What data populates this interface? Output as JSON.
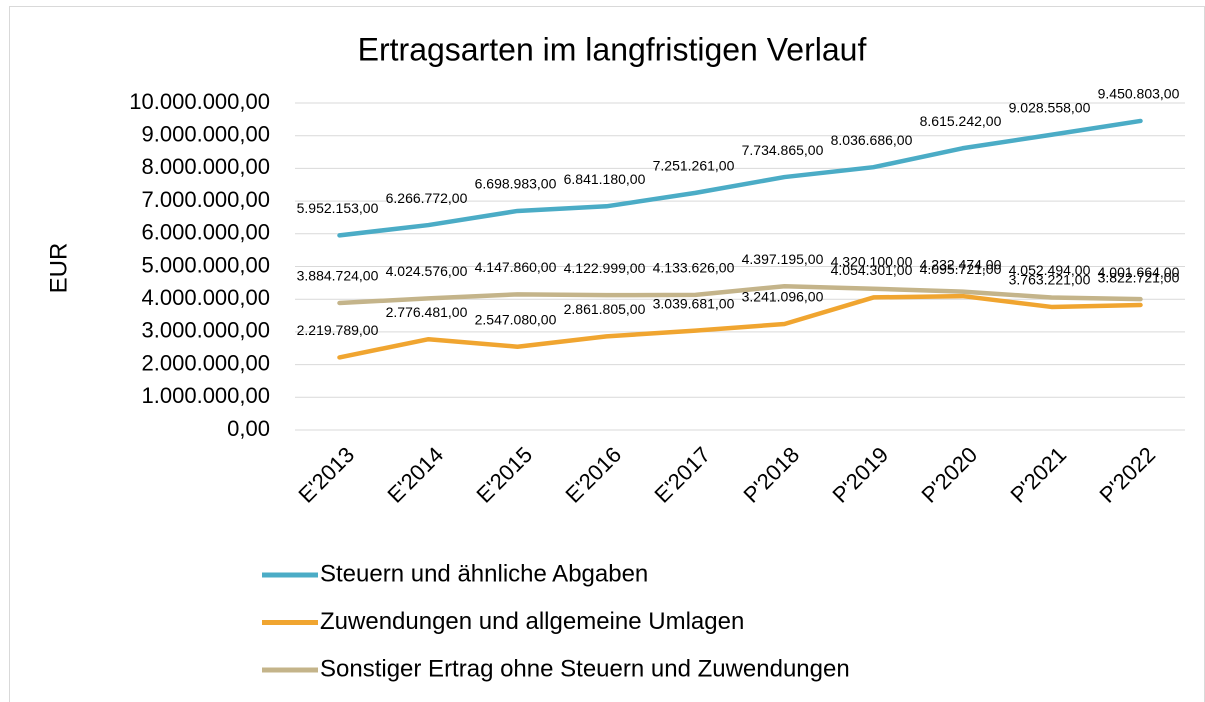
{
  "chart_data": {
    "type": "line",
    "title": "Ertragsarten im langfristigen Verlauf",
    "ylabel": "EUR",
    "categories": [
      "E'2013",
      "E'2014",
      "E'2015",
      "E'2016",
      "E'2017",
      "P'2018",
      "P'2019",
      "P'2020",
      "P'2021",
      "P'2022"
    ],
    "series": [
      {
        "name": "Steuern und ähnliche Abgaben",
        "color": "#4bacc6",
        "values": [
          5952153,
          6266772,
          6698983,
          6841180,
          7251261,
          7734865,
          8036686,
          8615242,
          9028558,
          9450803
        ],
        "value_labels": [
          "5.952.153,00",
          "6.266.772,00",
          "6.698.983,00",
          "6.841.180,00",
          "7.251.261,00",
          "7.734.865,00",
          "8.036.686,00",
          "8.615.242,00",
          "9.028.558,00",
          "9.450.803,00"
        ]
      },
      {
        "name": "Zuwendungen und allgemeine Umlagen",
        "color": "#f0a530",
        "values": [
          2219789,
          2776481,
          2547080,
          2861805,
          3039681,
          3241096,
          4054301,
          4095721,
          3763221,
          3822721
        ],
        "value_labels": [
          "2.219.789,00",
          "2.776.481,00",
          "2.547.080,00",
          "2.861.805,00",
          "3.039.681,00",
          "3.241.096,00",
          "4.054.301,00",
          "4.095.721,00",
          "3.763.221,00",
          "3.822.721,00"
        ]
      },
      {
        "name": "Sonstiger Ertrag ohne Steuern und Zuwendungen",
        "color": "#c4b48a",
        "values": [
          3884724,
          4024576,
          4147860,
          4122999,
          4133626,
          4397195,
          4320100,
          4232474,
          4052494,
          4001664
        ],
        "value_labels": [
          "3.884.724,00",
          "4.024.576,00",
          "4.147.860,00",
          "4.122.999,00",
          "4.133.626,00",
          "4.397.195,00",
          "4.320.100,00",
          "4.232.474,00",
          "4.052.494,00",
          "4.001.664,00"
        ]
      }
    ],
    "ylim": [
      0,
      10000000
    ],
    "yticks": [
      {
        "value": 0,
        "label": "0,00"
      },
      {
        "value": 1000000,
        "label": "1.000.000,00"
      },
      {
        "value": 2000000,
        "label": "2.000.000,00"
      },
      {
        "value": 3000000,
        "label": "3.000.000,00"
      },
      {
        "value": 4000000,
        "label": "4.000.000,00"
      },
      {
        "value": 5000000,
        "label": "5.000.000,00"
      },
      {
        "value": 6000000,
        "label": "6.000.000,00"
      },
      {
        "value": 7000000,
        "label": "7.000.000,00"
      },
      {
        "value": 8000000,
        "label": "8.000.000,00"
      },
      {
        "value": 9000000,
        "label": "9.000.000,00"
      },
      {
        "value": 10000000,
        "label": "10.000.000,00"
      }
    ],
    "grid": true,
    "legend": "bottom"
  }
}
